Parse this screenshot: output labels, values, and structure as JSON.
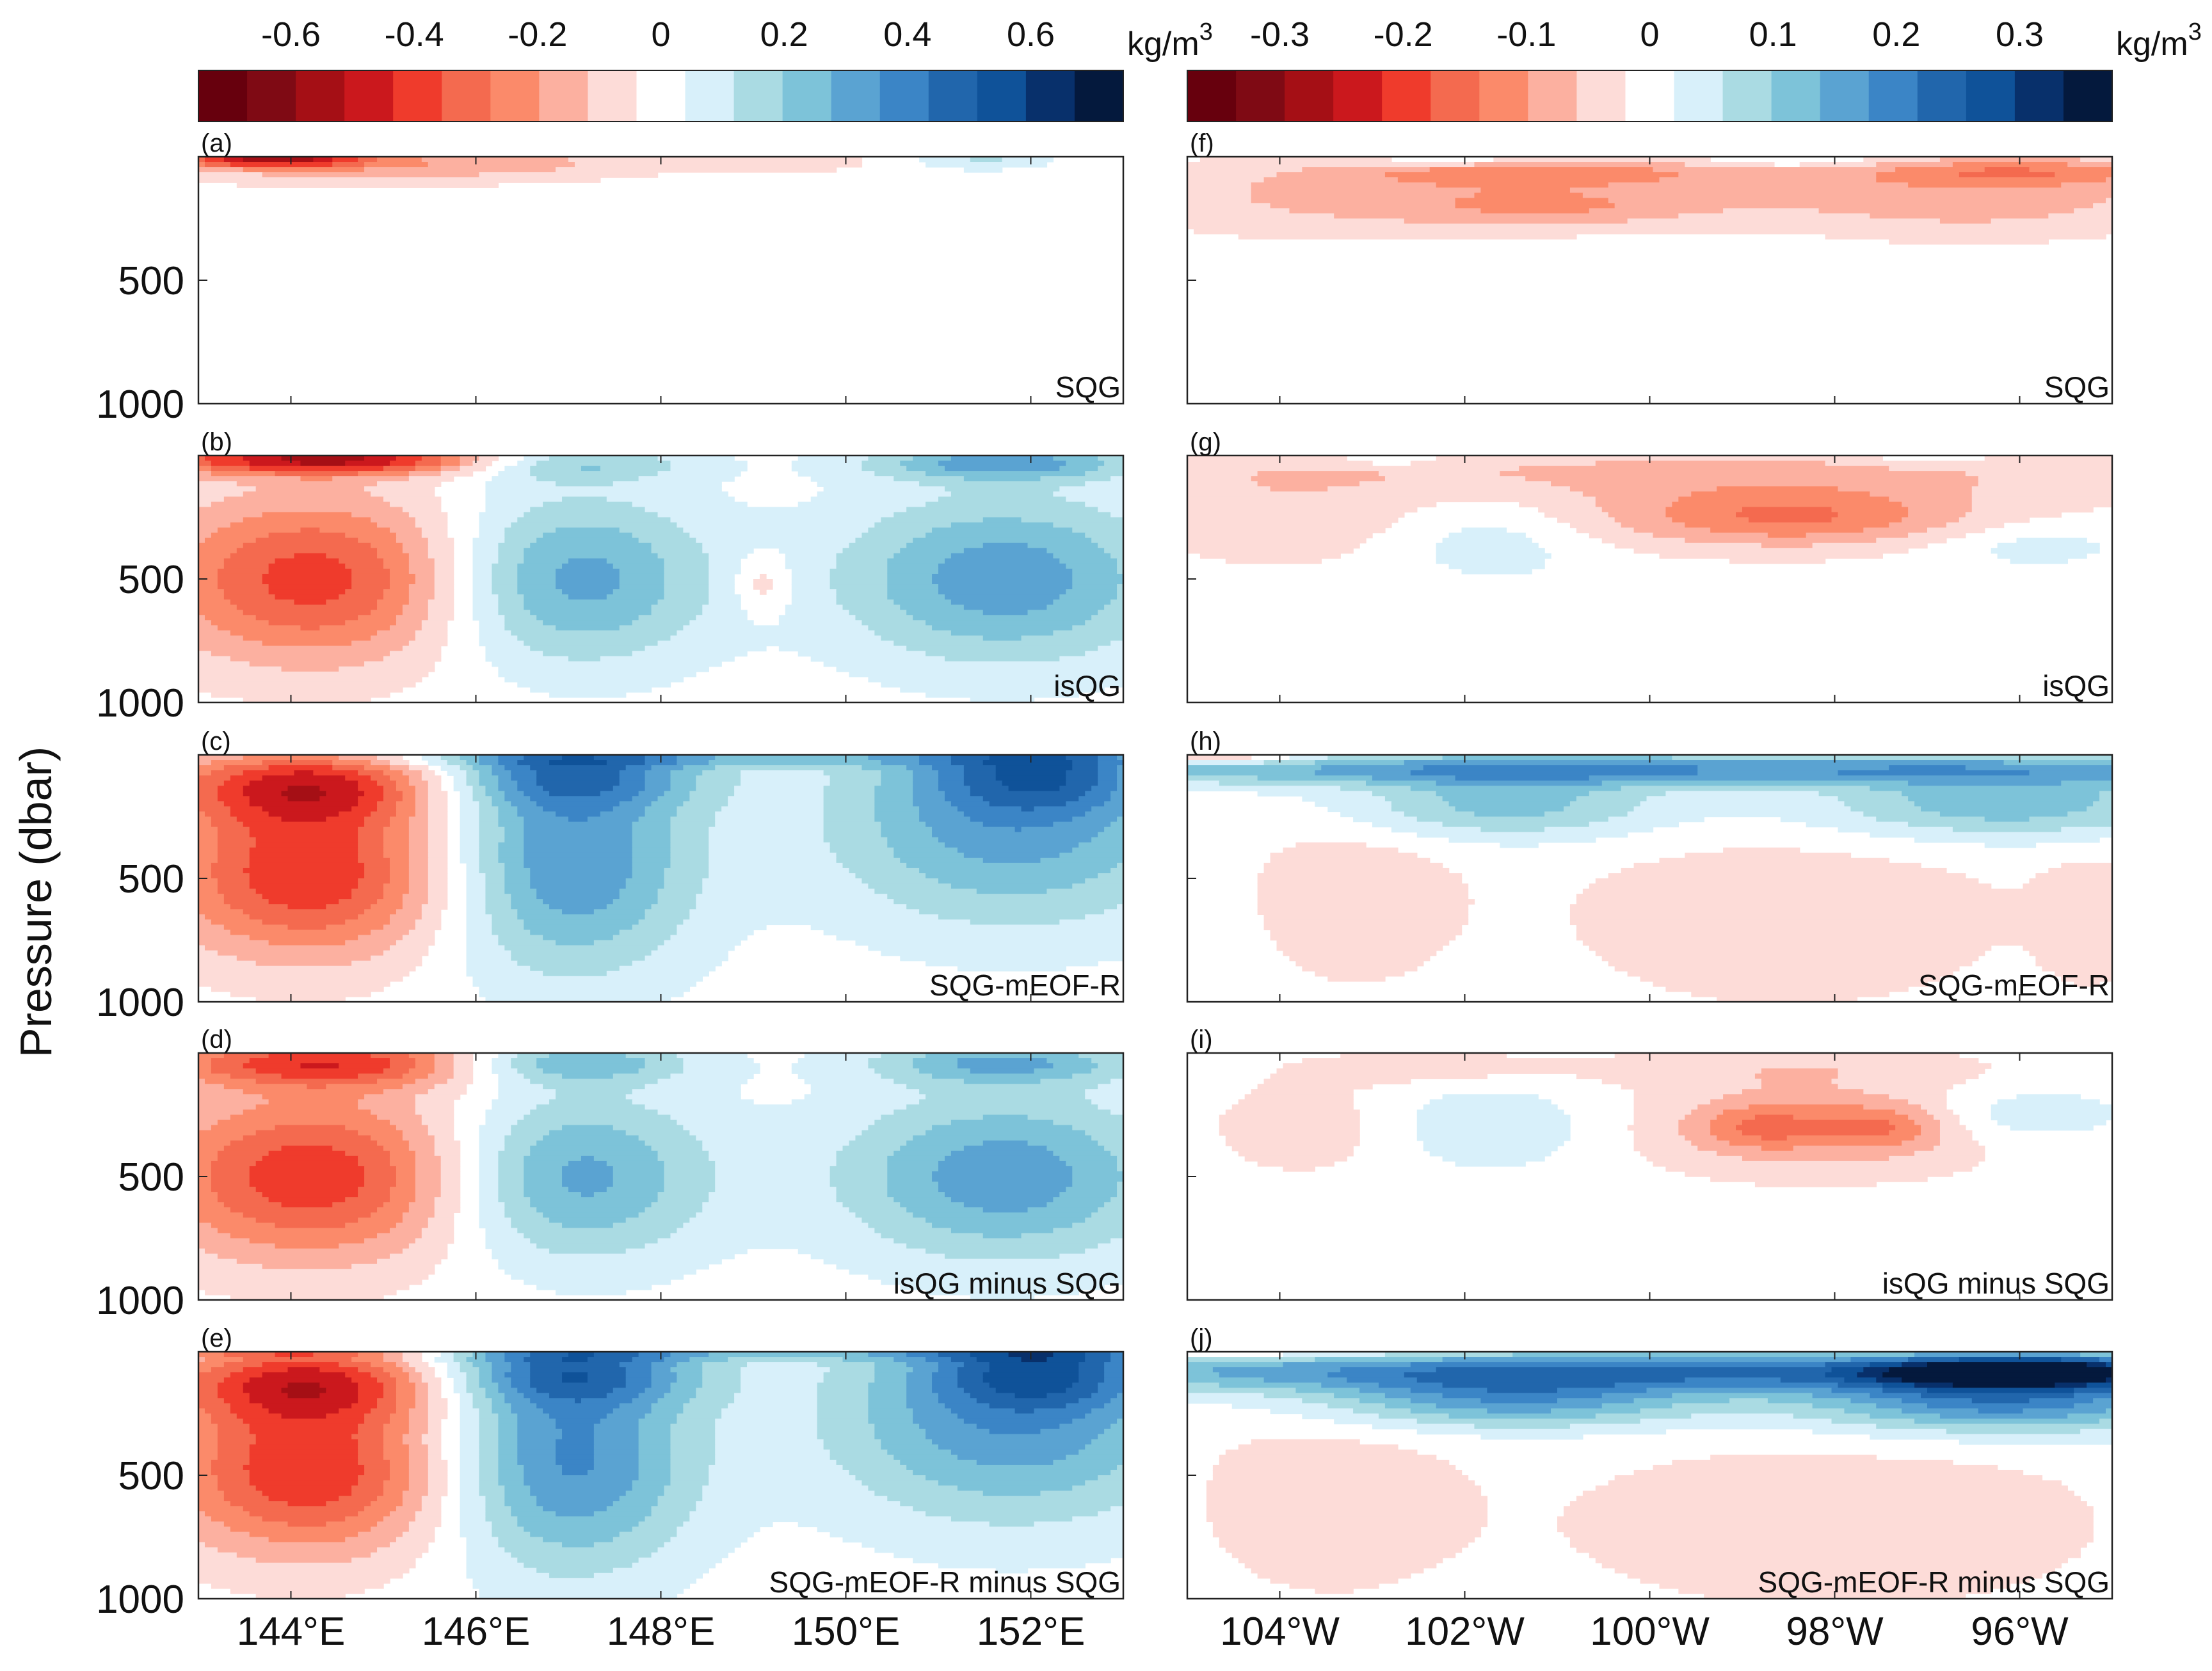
{
  "figure": {
    "ylabel": "Pressure (dbar)"
  },
  "colorbars": [
    {
      "id": "left",
      "unit": "kg/m",
      "unit_superscript": "3",
      "min": -0.75,
      "max": 0.75,
      "colors": [
        "#67000d",
        "#7f0a14",
        "#a50f15",
        "#cb181d",
        "#ef3b2c",
        "#f46a4f",
        "#fb8a6a",
        "#fcb0a0",
        "#fddcd8",
        "#ffffff",
        "#d8f0fa",
        "#aadbe3",
        "#7dc3d9",
        "#5aa3d2",
        "#3b85c6",
        "#2166ac",
        "#0f5299",
        "#08306b",
        "#04193d"
      ],
      "ticks": [
        {
          "value": -0.6,
          "label": "-0.6"
        },
        {
          "value": -0.4,
          "label": "-0.4"
        },
        {
          "value": -0.2,
          "label": "-0.2"
        },
        {
          "value": 0,
          "label": "0"
        },
        {
          "value": 0.2,
          "label": "0.2"
        },
        {
          "value": 0.4,
          "label": "0.4"
        },
        {
          "value": 0.6,
          "label": "0.6"
        }
      ]
    },
    {
      "id": "right",
      "unit": "kg/m",
      "unit_superscript": "3",
      "min": -0.375,
      "max": 0.375,
      "colors": [
        "#67000d",
        "#7f0a14",
        "#a50f15",
        "#cb181d",
        "#ef3b2c",
        "#f46a4f",
        "#fb8a6a",
        "#fcb0a0",
        "#fddcd8",
        "#ffffff",
        "#d8f0fa",
        "#aadbe3",
        "#7dc3d9",
        "#5aa3d2",
        "#3b85c6",
        "#2166ac",
        "#0f5299",
        "#08306b",
        "#04193d"
      ],
      "ticks": [
        {
          "value": -0.3,
          "label": "-0.3"
        },
        {
          "value": -0.2,
          "label": "-0.2"
        },
        {
          "value": -0.1,
          "label": "-0.1"
        },
        {
          "value": 0,
          "label": "0"
        },
        {
          "value": 0.1,
          "label": "0.1"
        },
        {
          "value": 0.2,
          "label": "0.2"
        },
        {
          "value": 0.3,
          "label": "0.3"
        }
      ]
    }
  ],
  "chart_data": [
    {
      "type": "heatmap",
      "panel": "a",
      "letter": "(a)",
      "title": "SQG",
      "column": "left",
      "pressure_ticks": [
        "500",
        "1000"
      ],
      "ylim": [
        0,
        1000
      ],
      "xlim": [
        143,
        153
      ]
    },
    {
      "type": "heatmap",
      "panel": "b",
      "letter": "(b)",
      "title": "isQG",
      "column": "left",
      "pressure_ticks": [
        "500",
        "1000"
      ],
      "ylim": [
        0,
        1000
      ],
      "xlim": [
        143,
        153
      ]
    },
    {
      "type": "heatmap",
      "panel": "c",
      "letter": "(c)",
      "title": "SQG-mEOF-R",
      "column": "left",
      "pressure_ticks": [
        "500",
        "1000"
      ],
      "ylim": [
        0,
        1000
      ],
      "xlim": [
        143,
        153
      ]
    },
    {
      "type": "heatmap",
      "panel": "d",
      "letter": "(d)",
      "title": "isQG minus SQG",
      "column": "left",
      "pressure_ticks": [
        "500",
        "1000"
      ],
      "ylim": [
        0,
        1000
      ],
      "xlim": [
        143,
        153
      ]
    },
    {
      "type": "heatmap",
      "panel": "e",
      "letter": "(e)",
      "title": "SQG-mEOF-R minus SQG",
      "column": "left",
      "pressure_ticks": [
        "500",
        "1000"
      ],
      "ylim": [
        0,
        1000
      ],
      "xlim": [
        143,
        153
      ],
      "xticks": [
        {
          "value": 144,
          "label": "144°E"
        },
        {
          "value": 146,
          "label": "146°E"
        },
        {
          "value": 148,
          "label": "148°E"
        },
        {
          "value": 150,
          "label": "150°E"
        },
        {
          "value": 152,
          "label": "152°E"
        }
      ]
    },
    {
      "type": "heatmap",
      "panel": "f",
      "letter": "(f)",
      "title": "SQG",
      "column": "right",
      "ylim": [
        0,
        1000
      ],
      "xlim": [
        -105,
        -95
      ]
    },
    {
      "type": "heatmap",
      "panel": "g",
      "letter": "(g)",
      "title": "isQG",
      "column": "right",
      "ylim": [
        0,
        1000
      ],
      "xlim": [
        -105,
        -95
      ]
    },
    {
      "type": "heatmap",
      "panel": "h",
      "letter": "(h)",
      "title": "SQG-mEOF-R",
      "column": "right",
      "ylim": [
        0,
        1000
      ],
      "xlim": [
        -105,
        -95
      ]
    },
    {
      "type": "heatmap",
      "panel": "i",
      "letter": "(i)",
      "title": "isQG minus SQG",
      "column": "right",
      "ylim": [
        0,
        1000
      ],
      "xlim": [
        -105,
        -95
      ]
    },
    {
      "type": "heatmap",
      "panel": "j",
      "letter": "(j)",
      "title": "SQG-mEOF-R minus SQG",
      "column": "right",
      "ylim": [
        0,
        1000
      ],
      "xlim": [
        -105,
        -95
      ],
      "xticks": [
        {
          "value": -104,
          "label": "104°W"
        },
        {
          "value": -102,
          "label": "102°W"
        },
        {
          "value": -100,
          "label": "100°W"
        },
        {
          "value": -98,
          "label": "98°W"
        },
        {
          "value": -96,
          "label": "96°W"
        }
      ]
    }
  ],
  "fields": {
    "a": [
      {
        "x": 143.8,
        "p": 8,
        "sx": 0.7,
        "sp": 25,
        "v": -0.45
      },
      {
        "x": 144.5,
        "p": 35,
        "sx": 1.6,
        "sp": 55,
        "v": -0.14
      },
      {
        "x": 146.5,
        "p": 25,
        "sx": 1.3,
        "sp": 45,
        "v": -0.09
      },
      {
        "x": 151.5,
        "p": 15,
        "sx": 0.5,
        "sp": 25,
        "v": 0.13
      },
      {
        "x": 149.5,
        "p": 20,
        "sx": 0.6,
        "sp": 30,
        "v": -0.08
      }
    ],
    "b": [
      {
        "x": 144.3,
        "p": 500,
        "sx": 1.25,
        "sp": 240,
        "v": -0.4
      },
      {
        "x": 144.4,
        "p": 15,
        "sx": 1.4,
        "sp": 45,
        "v": -0.5
      },
      {
        "x": 147.0,
        "p": 500,
        "sx": 1.05,
        "sp": 240,
        "v": 0.33
      },
      {
        "x": 147.0,
        "p": 30,
        "sx": 0.9,
        "sp": 50,
        "v": 0.22
      },
      {
        "x": 151.7,
        "p": 500,
        "sx": 1.25,
        "sp": 240,
        "v": 0.33
      },
      {
        "x": 151.7,
        "p": 30,
        "sx": 1.0,
        "sp": 50,
        "v": 0.3
      },
      {
        "x": 149.1,
        "p": 520,
        "sx": 0.22,
        "sp": 90,
        "v": -0.13
      }
    ],
    "c": [
      {
        "x": 144.2,
        "p": 480,
        "sx": 1.1,
        "sp": 240,
        "v": -0.43
      },
      {
        "x": 144.2,
        "p": 120,
        "sx": 1.1,
        "sp": 110,
        "v": -0.38
      },
      {
        "x": 147.0,
        "p": 430,
        "sx": 0.95,
        "sp": 320,
        "v": 0.36
      },
      {
        "x": 147.0,
        "p": 80,
        "sx": 1.0,
        "sp": 100,
        "v": 0.3
      },
      {
        "x": 151.8,
        "p": 260,
        "sx": 1.4,
        "sp": 300,
        "v": 0.33
      },
      {
        "x": 152.1,
        "p": 70,
        "sx": 0.8,
        "sp": 110,
        "v": 0.28
      },
      {
        "x": 148.5,
        "p": 15,
        "sx": 3.0,
        "sp": 25,
        "v": 0.16
      }
    ],
    "d": [
      {
        "x": 144.3,
        "p": 500,
        "sx": 1.3,
        "sp": 240,
        "v": -0.42
      },
      {
        "x": 144.4,
        "p": 40,
        "sx": 1.3,
        "sp": 70,
        "v": -0.38
      },
      {
        "x": 147.0,
        "p": 500,
        "sx": 1.05,
        "sp": 240,
        "v": 0.33
      },
      {
        "x": 147.0,
        "p": 40,
        "sx": 0.9,
        "sp": 60,
        "v": 0.26
      },
      {
        "x": 151.7,
        "p": 500,
        "sx": 1.25,
        "sp": 240,
        "v": 0.33
      },
      {
        "x": 151.7,
        "p": 40,
        "sx": 1.0,
        "sp": 60,
        "v": 0.26
      }
    ],
    "e": [
      {
        "x": 144.2,
        "p": 480,
        "sx": 1.1,
        "sp": 240,
        "v": -0.43
      },
      {
        "x": 144.2,
        "p": 120,
        "sx": 1.1,
        "sp": 110,
        "v": -0.38
      },
      {
        "x": 147.0,
        "p": 430,
        "sx": 0.95,
        "sp": 320,
        "v": 0.38
      },
      {
        "x": 147.0,
        "p": 80,
        "sx": 1.0,
        "sp": 100,
        "v": 0.32
      },
      {
        "x": 151.8,
        "p": 260,
        "sx": 1.4,
        "sp": 300,
        "v": 0.35
      },
      {
        "x": 152.1,
        "p": 70,
        "sx": 0.8,
        "sp": 110,
        "v": 0.3
      },
      {
        "x": 148.0,
        "p": 10,
        "sx": 5.0,
        "sp": 20,
        "v": 0.14
      },
      {
        "x": 144.0,
        "p": 8,
        "sx": 1.5,
        "sp": 15,
        "v": -0.18
      }
    ],
    "f": [
      {
        "x": -100,
        "p": 120,
        "sx": 4.5,
        "sp": 90,
        "v": -0.045
      },
      {
        "x": -101.2,
        "p": 60,
        "sx": 1.5,
        "sp": 40,
        "v": -0.09
      },
      {
        "x": -96,
        "p": 60,
        "sx": 1.2,
        "sp": 40,
        "v": -0.1
      },
      {
        "x": -96.5,
        "p": 200,
        "sx": 1.5,
        "sp": 100,
        "v": -0.06
      },
      {
        "x": -101,
        "p": 210,
        "sx": 1.2,
        "sp": 60,
        "v": -0.07
      },
      {
        "x": -103.5,
        "p": 200,
        "sx": 1.5,
        "sp": 110,
        "v": -0.04
      },
      {
        "x": -102,
        "p": 15,
        "sx": 0.8,
        "sp": 20,
        "v": 0.05
      },
      {
        "x": -98.5,
        "p": 15,
        "sx": 0.7,
        "sp": 20,
        "v": 0.05
      }
    ],
    "g": [
      {
        "x": -100,
        "p": 60,
        "sx": 5.0,
        "sp": 70,
        "v": -0.05
      },
      {
        "x": -99,
        "p": 220,
        "sx": 2.5,
        "sp": 120,
        "v": -0.06
      },
      {
        "x": -98.4,
        "p": 250,
        "sx": 1.2,
        "sp": 80,
        "v": -0.09
      },
      {
        "x": -104,
        "p": 250,
        "sx": 1.0,
        "sp": 150,
        "v": -0.045
      },
      {
        "x": -101.7,
        "p": 330,
        "sx": 0.8,
        "sp": 120,
        "v": 0.055
      },
      {
        "x": -95.9,
        "p": 360,
        "sx": 0.8,
        "sp": 70,
        "v": 0.045
      },
      {
        "x": -102.8,
        "p": 20,
        "sx": 0.5,
        "sp": 20,
        "v": 0.04
      },
      {
        "x": -97,
        "p": 15,
        "sx": 0.5,
        "sp": 20,
        "v": 0.04
      }
    ],
    "h": [
      {
        "x": -100,
        "p": 60,
        "sx": 5.5,
        "sp": 45,
        "v": 0.17
      },
      {
        "x": -101.6,
        "p": 200,
        "sx": 1.3,
        "sp": 100,
        "v": 0.12
      },
      {
        "x": -96.2,
        "p": 200,
        "sx": 1.5,
        "sp": 100,
        "v": 0.13
      },
      {
        "x": -104.6,
        "p": 10,
        "sx": 0.6,
        "sp": 20,
        "v": -0.1
      },
      {
        "x": -103.2,
        "p": 550,
        "sx": 0.8,
        "sp": 280,
        "v": -0.045
      },
      {
        "x": -98.5,
        "p": 650,
        "sx": 1.8,
        "sp": 280,
        "v": -0.045
      },
      {
        "x": -95.2,
        "p": 650,
        "sx": 0.4,
        "sp": 200,
        "v": -0.04
      }
    ],
    "i": [
      {
        "x": -98.2,
        "p": 300,
        "sx": 1.5,
        "sp": 150,
        "v": -0.07
      },
      {
        "x": -97.5,
        "p": 300,
        "sx": 0.5,
        "sp": 70,
        "v": -0.09
      },
      {
        "x": -98.8,
        "p": 300,
        "sx": 0.5,
        "sp": 70,
        "v": -0.09
      },
      {
        "x": -101.7,
        "p": 300,
        "sx": 0.8,
        "sp": 120,
        "v": 0.06
      },
      {
        "x": -96.0,
        "p": 250,
        "sx": 0.8,
        "sp": 80,
        "v": 0.06
      },
      {
        "x": -103.7,
        "p": 300,
        "sx": 0.8,
        "sp": 150,
        "v": -0.04
      },
      {
        "x": -102.3,
        "p": 60,
        "sx": 1.0,
        "sp": 50,
        "v": -0.04
      },
      {
        "x": -98.5,
        "p": 60,
        "sx": 1.5,
        "sp": 60,
        "v": -0.04
      }
    ],
    "j": [
      {
        "x": -100,
        "p": 80,
        "sx": 5.5,
        "sp": 60,
        "v": 0.2
      },
      {
        "x": -101.5,
        "p": 200,
        "sx": 1.5,
        "sp": 80,
        "v": 0.16
      },
      {
        "x": -96.2,
        "p": 200,
        "sx": 1.5,
        "sp": 90,
        "v": 0.2
      },
      {
        "x": -96,
        "p": 80,
        "sx": 1.0,
        "sp": 40,
        "v": 0.28
      },
      {
        "x": -104.5,
        "p": 10,
        "sx": 1.5,
        "sp": 15,
        "v": -0.06
      },
      {
        "x": -103.5,
        "p": 600,
        "sx": 1.0,
        "sp": 280,
        "v": -0.045
      },
      {
        "x": -98.0,
        "p": 700,
        "sx": 2.2,
        "sp": 260,
        "v": -0.045
      }
    ]
  }
}
